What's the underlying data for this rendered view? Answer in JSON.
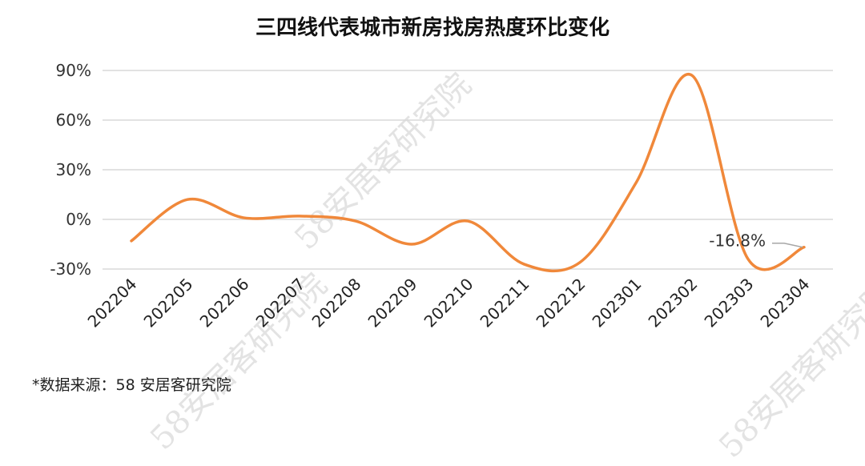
{
  "title": "三四线代表城市新房找房热度环比变化",
  "source_note": "*数据来源：58 安居客研究院",
  "watermark_text": "58安居客研究院",
  "chart_data": {
    "type": "line",
    "title": "三四线代表城市新房找房热度环比变化",
    "categories": [
      "202204",
      "202205",
      "202206",
      "202207",
      "202208",
      "202209",
      "202210",
      "202211",
      "202212",
      "202301",
      "202302",
      "202303",
      "202304"
    ],
    "series": [
      {
        "values": [
          -13,
          12,
          1,
          2,
          -1,
          -15,
          -1,
          -27,
          -26,
          22,
          87,
          -24,
          -16.8
        ],
        "color": "#F0883A"
      }
    ],
    "yticks": [
      "90%",
      "60%",
      "30%",
      "0%",
      "-30%"
    ],
    "ylim": [
      -30,
      90
    ],
    "grid": true,
    "annotations": [
      {
        "category": "202304",
        "text": "-16.8%"
      }
    ]
  }
}
